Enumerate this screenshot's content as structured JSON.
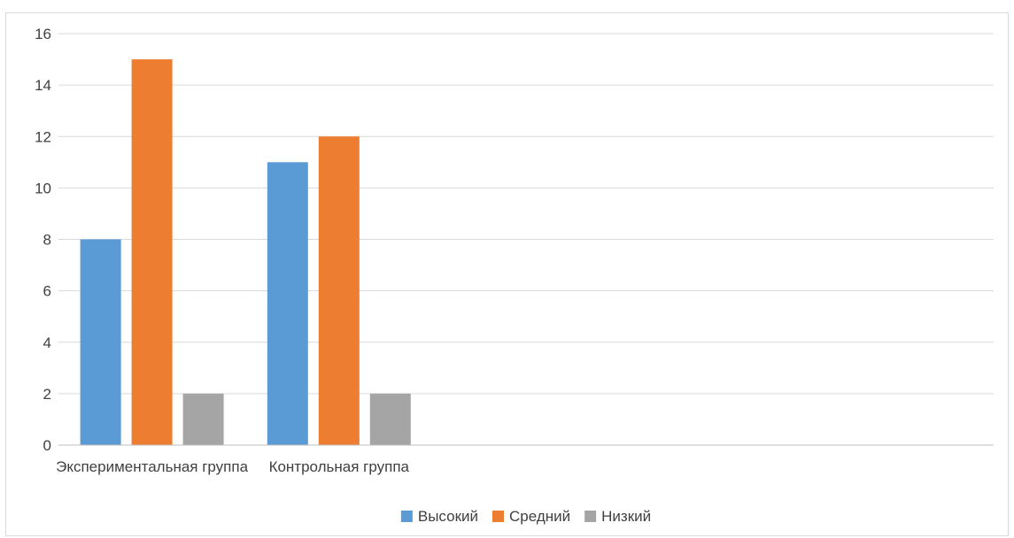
{
  "chart_data": {
    "type": "bar",
    "categories": [
      "Экспериментальная группа",
      "Контрольная группа",
      "",
      "",
      ""
    ],
    "series": [
      {
        "name": "Высокий",
        "values": [
          8,
          11,
          null,
          null,
          null
        ],
        "color": "#5b9bd5"
      },
      {
        "name": "Средний",
        "values": [
          15,
          12,
          null,
          null,
          null
        ],
        "color": "#ed7d31"
      },
      {
        "name": "Низкий",
        "values": [
          2,
          2,
          null,
          null,
          null
        ],
        "color": "#a5a5a5"
      }
    ],
    "title": "",
    "xlabel": "",
    "ylabel": "",
    "ylim": [
      0,
      16
    ],
    "yticks": [
      0,
      2,
      4,
      6,
      8,
      10,
      12,
      14,
      16
    ],
    "grid": true,
    "legend_position": "bottom",
    "gridline_color": "#d9d9d9",
    "axis_color": "#bfbfbf"
  }
}
